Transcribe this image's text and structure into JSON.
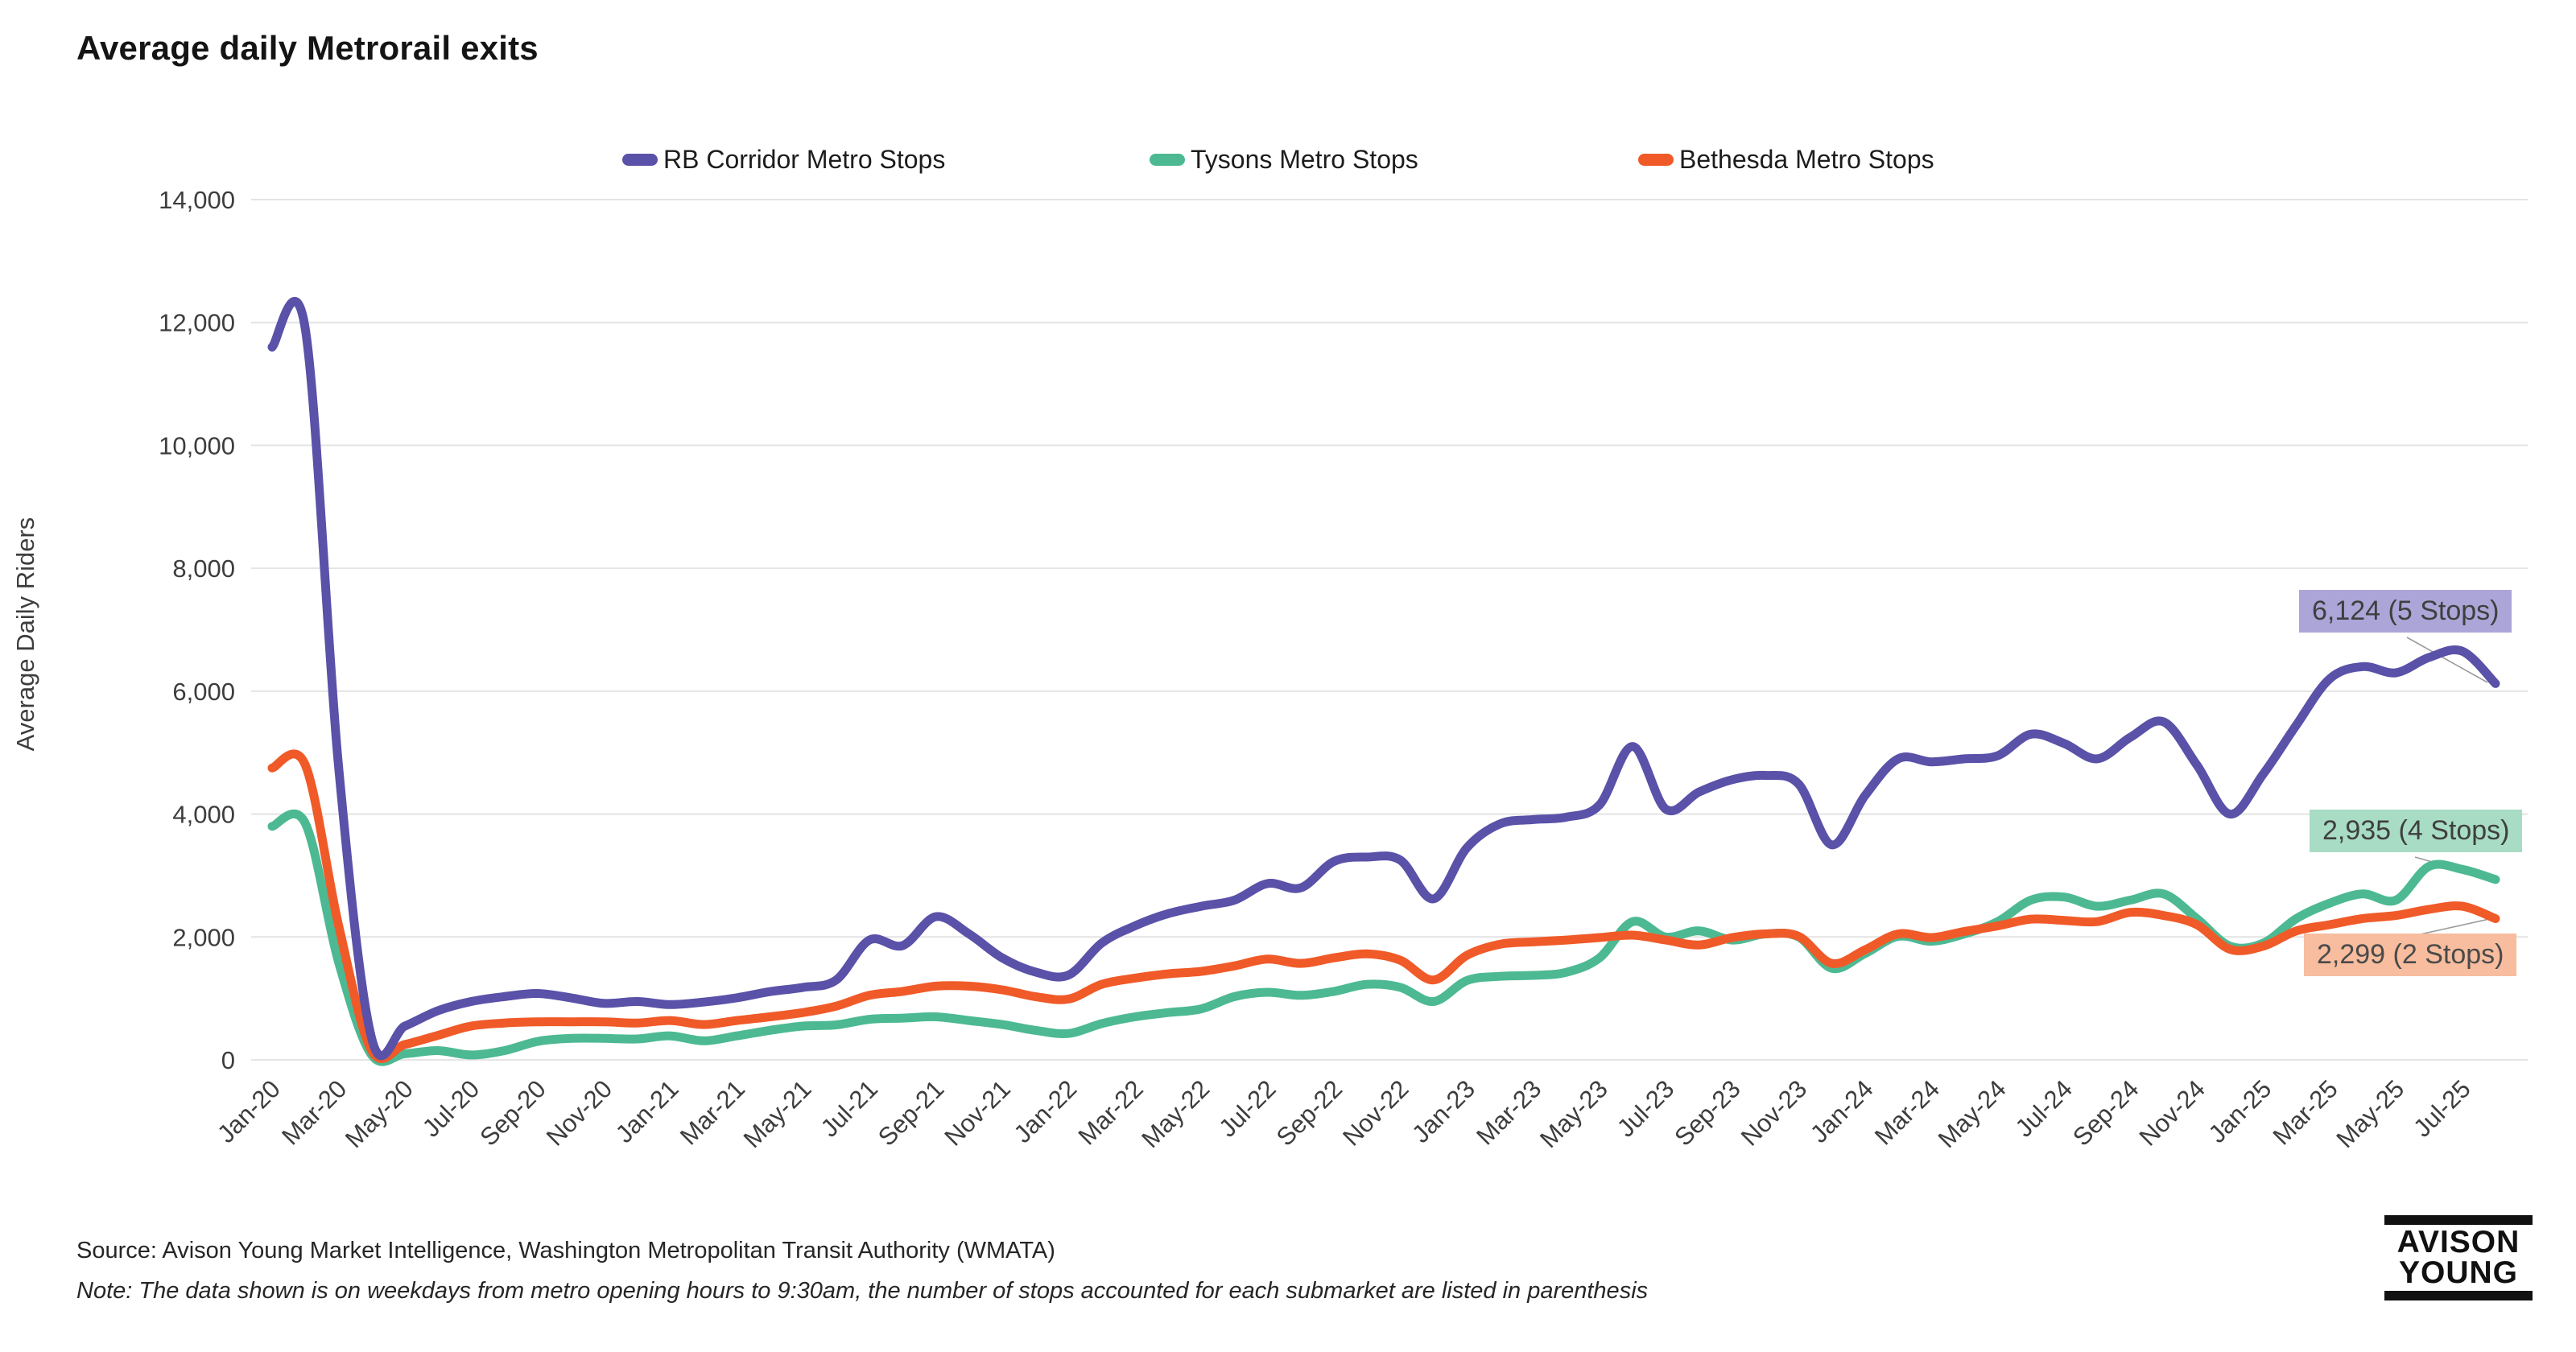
{
  "title": "Average daily Metrorail exits",
  "legend": [
    {
      "label": "RB Corridor Metro Stops",
      "color": "#5A51A8"
    },
    {
      "label": "Tysons Metro Stops",
      "color": "#4DB993"
    },
    {
      "label": "Bethesda Metro Stops",
      "color": "#F05A28"
    }
  ],
  "y_axis": {
    "title": "Average Daily Riders",
    "ticks": [
      "0",
      "2,000",
      "4,000",
      "6,000",
      "8,000",
      "10,000",
      "12,000",
      "14,000"
    ]
  },
  "annotations": [
    {
      "text": "6,124 (5 Stops)",
      "bg": "#ACA5D8",
      "fg": "#3f3f3f"
    },
    {
      "text": "2,935 (4 Stops)",
      "bg": "#A8DCC5",
      "fg": "#3f3f3f"
    },
    {
      "text": "2,299 (2 Stops)",
      "bg": "#F7BD9E",
      "fg": "#4a4a4a"
    }
  ],
  "footer": {
    "source": "Source: Avison Young Market Intelligence, Washington Metropolitan Transit Authority (WMATA)",
    "note": "Note: The data shown is on weekdays from metro opening hours to 9:30am, the number of stops accounted for each submarket are listed in parenthesis"
  },
  "logo": {
    "line1": "AVISON",
    "line2": "YOUNG"
  },
  "chart_data": {
    "type": "line",
    "title": "Average daily Metrorail exits",
    "ylabel": "Average Daily Riders",
    "ylim": [
      0,
      14000
    ],
    "y_step": 2000,
    "grid": "horizontal",
    "legend_position": "top",
    "x_tick_every": 2,
    "x": [
      "Jan-20",
      "Feb-20",
      "Mar-20",
      "Apr-20",
      "May-20",
      "Jun-20",
      "Jul-20",
      "Aug-20",
      "Sep-20",
      "Oct-20",
      "Nov-20",
      "Dec-20",
      "Jan-21",
      "Feb-21",
      "Mar-21",
      "Apr-21",
      "May-21",
      "Jun-21",
      "Jul-21",
      "Aug-21",
      "Sep-21",
      "Oct-21",
      "Nov-21",
      "Dec-21",
      "Jan-22",
      "Feb-22",
      "Mar-22",
      "Apr-22",
      "May-22",
      "Jun-22",
      "Jul-22",
      "Aug-22",
      "Sep-22",
      "Oct-22",
      "Nov-22",
      "Dec-22",
      "Jan-23",
      "Feb-23",
      "Mar-23",
      "Apr-23",
      "May-23",
      "Jun-23",
      "Jul-23",
      "Aug-23",
      "Sep-23",
      "Oct-23",
      "Nov-23",
      "Dec-23",
      "Jan-24",
      "Feb-24",
      "Mar-24",
      "Apr-24",
      "May-24",
      "Jun-24",
      "Jul-24",
      "Aug-24",
      "Sep-24",
      "Oct-24",
      "Nov-24",
      "Dec-24",
      "Jan-25",
      "Feb-25",
      "Mar-25",
      "Apr-25",
      "May-25",
      "Jun-25",
      "Jul-25",
      "Aug-25"
    ],
    "series": [
      {
        "name": "RB Corridor Metro Stops",
        "color": "#5A51A8",
        "final_label": "6,124 (5 Stops)",
        "values": [
          11600,
          11900,
          4800,
          350,
          550,
          800,
          950,
          1030,
          1080,
          1010,
          920,
          950,
          900,
          940,
          1010,
          1110,
          1180,
          1300,
          1950,
          1860,
          2330,
          2050,
          1660,
          1430,
          1380,
          1900,
          2180,
          2380,
          2500,
          2600,
          2870,
          2800,
          3230,
          3300,
          3250,
          2620,
          3450,
          3840,
          3910,
          3950,
          4150,
          5100,
          4080,
          4360,
          4560,
          4630,
          4490,
          3500,
          4300,
          4900,
          4850,
          4900,
          4950,
          5300,
          5150,
          4900,
          5250,
          5500,
          4800,
          4000,
          4650,
          5450,
          6200,
          6400,
          6300,
          6550,
          6650,
          6124
        ]
      },
      {
        "name": "Tysons Metro Stops",
        "color": "#4DB993",
        "final_label": "2,935 (4 Stops)",
        "values": [
          3800,
          3850,
          1600,
          80,
          100,
          150,
          80,
          150,
          300,
          350,
          350,
          340,
          390,
          310,
          390,
          480,
          550,
          570,
          660,
          680,
          700,
          640,
          575,
          480,
          430,
          590,
          700,
          770,
          830,
          1030,
          1100,
          1050,
          1115,
          1230,
          1180,
          950,
          1290,
          1360,
          1375,
          1425,
          1660,
          2250,
          2000,
          2100,
          1950,
          2050,
          2000,
          1490,
          1730,
          2010,
          1930,
          2050,
          2250,
          2600,
          2650,
          2500,
          2600,
          2700,
          2300,
          1850,
          1900,
          2300,
          2550,
          2700,
          2600,
          3150,
          3100,
          2935
        ]
      },
      {
        "name": "Bethesda Metro Stops",
        "color": "#F05A28",
        "final_label": "2,299 (2 Stops)",
        "values": [
          4750,
          4800,
          2200,
          150,
          250,
          400,
          550,
          600,
          620,
          620,
          620,
          600,
          640,
          575,
          640,
          700,
          770,
          875,
          1050,
          1115,
          1200,
          1200,
          1140,
          1030,
          990,
          1230,
          1330,
          1400,
          1440,
          1530,
          1640,
          1570,
          1660,
          1725,
          1620,
          1300,
          1700,
          1880,
          1920,
          1950,
          1990,
          2030,
          1950,
          1870,
          1990,
          2050,
          2010,
          1570,
          1790,
          2050,
          1990,
          2090,
          2180,
          2290,
          2270,
          2250,
          2400,
          2350,
          2200,
          1800,
          1850,
          2100,
          2200,
          2300,
          2350,
          2450,
          2500,
          2299
        ]
      }
    ]
  },
  "style": {
    "gridline_color": "#e4e4e4",
    "tick_color": "#3d3d3d",
    "leader_color": "#9b9b9b"
  }
}
